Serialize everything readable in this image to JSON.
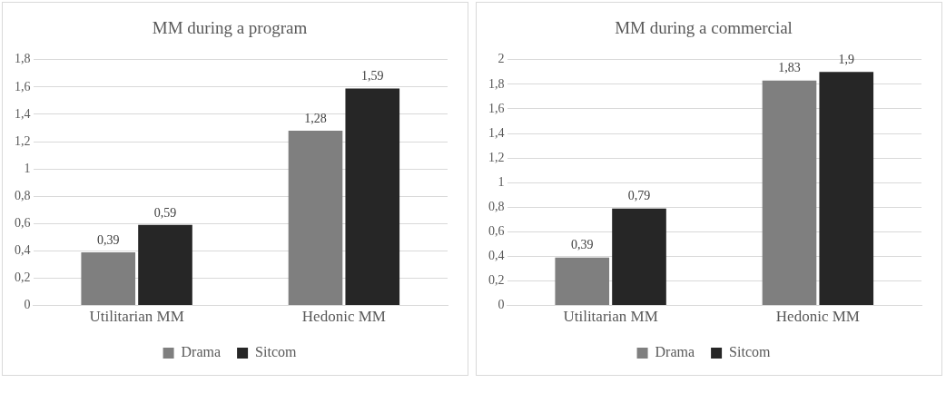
{
  "chart_data": [
    {
      "type": "bar",
      "title": "MM during a program",
      "categories": [
        "Utilitarian MM",
        "Hedonic MM"
      ],
      "series": [
        {
          "name": "Drama",
          "color": "#7f7f7f",
          "values": [
            0.39,
            1.28
          ],
          "value_labels": [
            "0,39",
            "1,28"
          ]
        },
        {
          "name": "Sitcom",
          "color": "#262626",
          "values": [
            0.59,
            1.59
          ],
          "value_labels": [
            "0,59",
            "1,59"
          ]
        }
      ],
      "ylim": [
        0,
        1.8
      ],
      "yticks": [
        0,
        {
          "value": 0.2,
          "label": "0,2"
        },
        {
          "value": 0.4,
          "label": "0,4"
        },
        {
          "value": 0.6,
          "label": "0,6"
        },
        {
          "value": 0.8,
          "label": "0,8"
        },
        1,
        {
          "value": 1.2,
          "label": "1,2"
        },
        {
          "value": 1.4,
          "label": "1,4"
        },
        {
          "value": 1.6,
          "label": "1,6"
        },
        {
          "value": 1.8,
          "label": "1,8"
        }
      ],
      "grid": "y",
      "legend": "bottom"
    },
    {
      "type": "bar",
      "title": "MM during a commercial",
      "categories": [
        "Utilitarian MM",
        "Hedonic MM"
      ],
      "series": [
        {
          "name": "Drama",
          "color": "#7f7f7f",
          "values": [
            0.39,
            1.83
          ],
          "value_labels": [
            "0,39",
            "1,83"
          ]
        },
        {
          "name": "Sitcom",
          "color": "#262626",
          "values": [
            0.79,
            1.9
          ],
          "value_labels": [
            "0,79",
            "1,9"
          ]
        }
      ],
      "ylim": [
        0,
        2
      ],
      "yticks": [
        0,
        {
          "value": 0.2,
          "label": "0,2"
        },
        {
          "value": 0.4,
          "label": "0,4"
        },
        {
          "value": 0.6,
          "label": "0,6"
        },
        {
          "value": 0.8,
          "label": "0,8"
        },
        1,
        {
          "value": 1.2,
          "label": "1,2"
        },
        {
          "value": 1.4,
          "label": "1,4"
        },
        {
          "value": 1.6,
          "label": "1,6"
        },
        {
          "value": 1.8,
          "label": "1,8"
        },
        2
      ],
      "grid": "y",
      "legend": "bottom"
    }
  ]
}
